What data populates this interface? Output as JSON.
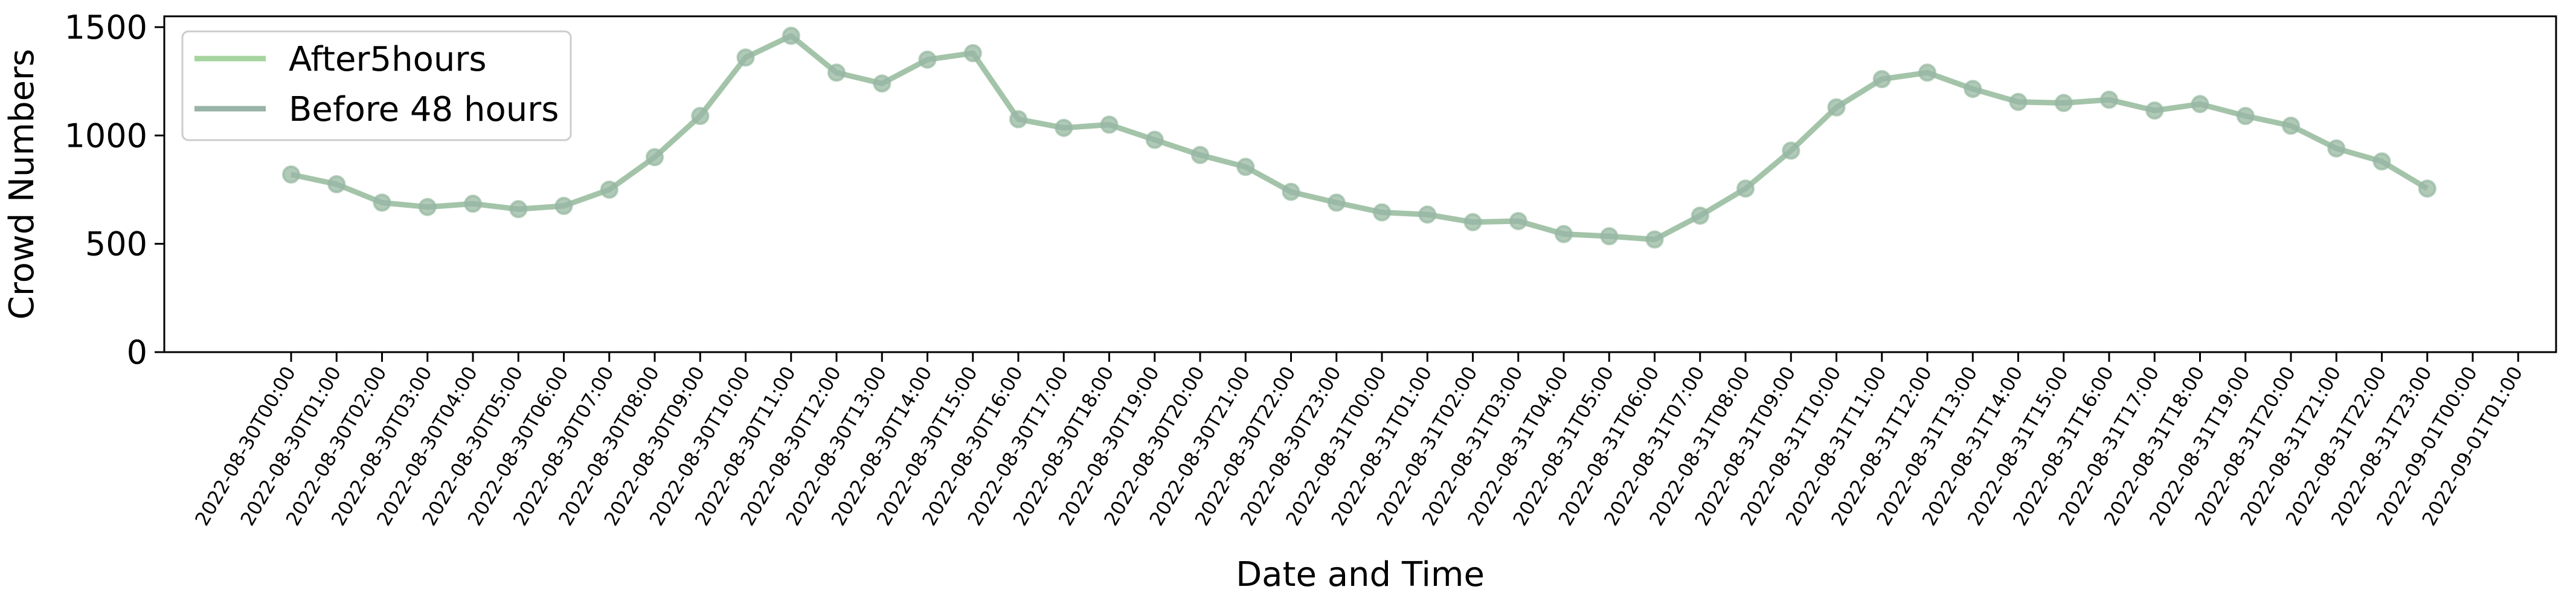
{
  "chart_data": {
    "type": "line",
    "xlabel": "Date and Time",
    "ylabel": "Crowd Numbers",
    "ylim": [
      0,
      1550
    ],
    "yticks": [
      0,
      500,
      1000,
      1500
    ],
    "grid": false,
    "legend_position": "top-left",
    "x_tick_labels": [
      "2022-08-30T00:00",
      "2022-08-30T01:00",
      "2022-08-30T02:00",
      "2022-08-30T03:00",
      "2022-08-30T04:00",
      "2022-08-30T05:00",
      "2022-08-30T06:00",
      "2022-08-30T07:00",
      "2022-08-30T08:00",
      "2022-08-30T09:00",
      "2022-08-30T10:00",
      "2022-08-30T11:00",
      "2022-08-30T12:00",
      "2022-08-30T13:00",
      "2022-08-30T14:00",
      "2022-08-30T15:00",
      "2022-08-30T16:00",
      "2022-08-30T17:00",
      "2022-08-30T18:00",
      "2022-08-30T19:00",
      "2022-08-30T20:00",
      "2022-08-30T21:00",
      "2022-08-30T22:00",
      "2022-08-30T23:00",
      "2022-08-31T00:00",
      "2022-08-31T01:00",
      "2022-08-31T02:00",
      "2022-08-31T03:00",
      "2022-08-31T04:00",
      "2022-08-31T05:00",
      "2022-08-31T06:00",
      "2022-08-31T07:00",
      "2022-08-31T08:00",
      "2022-08-31T09:00",
      "2022-08-31T10:00",
      "2022-08-31T11:00",
      "2022-08-31T12:00",
      "2022-08-31T13:00",
      "2022-08-31T14:00",
      "2022-08-31T15:00",
      "2022-08-31T16:00",
      "2022-08-31T17:00",
      "2022-08-31T18:00",
      "2022-08-31T19:00",
      "2022-08-31T20:00",
      "2022-08-31T21:00",
      "2022-08-31T22:00",
      "2022-08-31T23:00",
      "2022-09-01T00:00",
      "2022-09-01T01:00"
    ],
    "series": [
      {
        "name": "After5hours",
        "color": "#a6d49f",
        "values": [
          820,
          775,
          690,
          670,
          685,
          660,
          675,
          750,
          900,
          1090,
          1360,
          1460,
          1290,
          1240,
          1350,
          1380,
          1075,
          1035,
          1050,
          980,
          910,
          855,
          740,
          690,
          645,
          635,
          600,
          605,
          545,
          535,
          520,
          630,
          755,
          930,
          1130,
          1260,
          1290,
          1215,
          1155,
          1150,
          1165,
          1115,
          1145,
          1090,
          1045,
          940,
          880,
          755
        ]
      },
      {
        "name": "Before 48 hours",
        "color": "#98b3a7",
        "values": [
          820,
          775,
          690,
          670,
          685,
          660,
          675,
          750,
          900,
          1090,
          1360,
          1460,
          1290,
          1240,
          1350,
          1380,
          1075,
          1035,
          1050,
          980,
          910,
          855,
          740,
          690,
          645,
          635,
          600,
          605,
          545,
          535,
          520,
          630,
          755,
          930,
          1130,
          1260,
          1290,
          1215,
          1155,
          1150,
          1165,
          1115,
          1145,
          1090,
          1045,
          940,
          880,
          755
        ]
      }
    ]
  }
}
